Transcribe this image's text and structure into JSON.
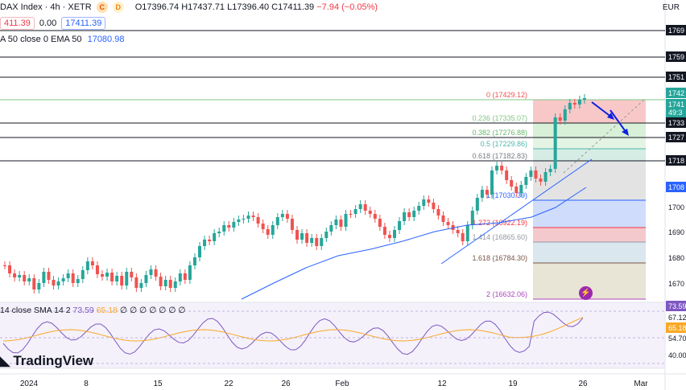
{
  "header": {
    "title": "DAX Index · 4h · XETR",
    "badge_c": "C",
    "badge_d": "D",
    "ohlc_o": "O17396.74",
    "ohlc_h": "H17437.71",
    "ohlc_l": "L17396.40",
    "ohlc_c": "C17411.39",
    "change": "−7.94 (−0.05%)"
  },
  "quote": {
    "sell": "411.39",
    "spread": "0.00",
    "buy": "17411.39"
  },
  "ema": {
    "label": "A 50 close 0 EMA 50",
    "value": "17080.98"
  },
  "currency": "EUR",
  "fib_labels": [
    "0 (17429.12)",
    "0.236 (17335.07)",
    "0.382 (17276.88)",
    "0.5 (17229.86)",
    "0.618 (17182.83)",
    "1 (17030.39)",
    "1.272 (16922.19)",
    "1.414 (16865.60)",
    "1.618 (16784.30)",
    "2 (16632.06)"
  ],
  "price_axis_labels": [
    "1769",
    "1759",
    "1751",
    "1742",
    "1741",
    "49:3",
    "1733",
    "1727",
    "1718",
    "1708",
    "1700",
    "1690",
    "1680",
    "1670"
  ],
  "rsi": {
    "label": "14 close SMA 14 2",
    "rsi_value": "73.59",
    "sma_value": "65.18",
    "zeros": "∅ ∅ ∅ ∅ ∅ ∅ ∅",
    "axis": [
      "73.59",
      "67.12",
      "65.18",
      "54.70",
      "40.00"
    ]
  },
  "x_axis": [
    "2024",
    "8",
    "15",
    "22",
    "26",
    "Feb",
    "12",
    "19",
    "26",
    "Mar"
  ],
  "brand": "TradingView",
  "colors": {
    "up": "#26a69a",
    "down": "#ef5350",
    "ema": "#2962ff",
    "rsi": "#7e57c2",
    "rsi_sma": "#f9a825",
    "arrow": "#0d1fe0"
  }
}
